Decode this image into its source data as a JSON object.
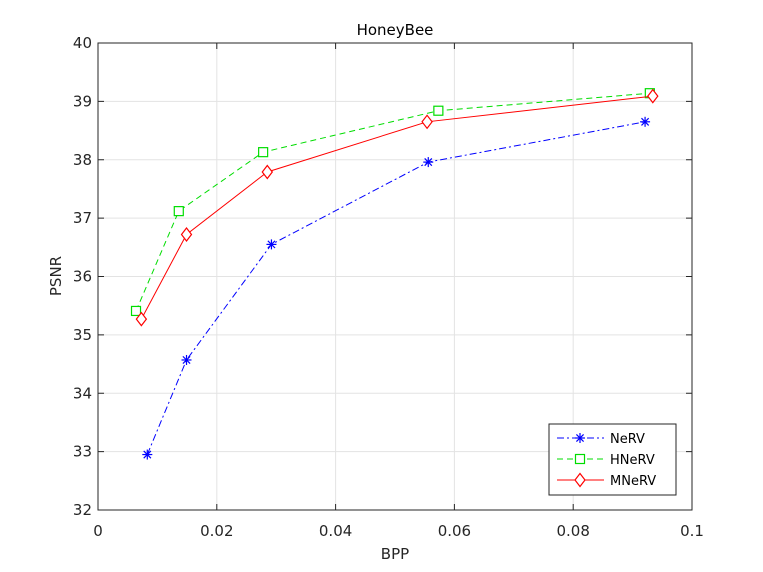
{
  "chart_data": {
    "type": "line",
    "title": "HoneyBee",
    "xlabel": "BPP",
    "ylabel": "PSNR",
    "xlim": [
      0,
      0.1
    ],
    "ylim": [
      32,
      40
    ],
    "xticks": [
      0,
      0.02,
      0.04,
      0.06,
      0.08,
      0.1
    ],
    "xtick_labels": [
      "0",
      "0.02",
      "0.04",
      "0.06",
      "0.08",
      "0.1"
    ],
    "yticks": [
      32,
      33,
      34,
      35,
      36,
      37,
      38,
      39,
      40
    ],
    "ytick_labels": [
      "32",
      "33",
      "34",
      "35",
      "36",
      "37",
      "38",
      "39",
      "40"
    ],
    "grid": true,
    "legend_position": "bottom-right",
    "series": [
      {
        "name": "NeRV",
        "color": "#0000ff",
        "line_style": "dash-dot",
        "marker": "asterisk",
        "x": [
          0.0083,
          0.0149,
          0.0292,
          0.0556,
          0.0921
        ],
        "y": [
          32.95,
          34.57,
          36.55,
          37.96,
          38.65
        ]
      },
      {
        "name": "HNeRV",
        "color": "#00dd00",
        "line_style": "dashed",
        "marker": "square",
        "x": [
          0.0064,
          0.0136,
          0.0278,
          0.0573,
          0.0929
        ],
        "y": [
          35.41,
          37.12,
          38.13,
          38.84,
          39.14
        ]
      },
      {
        "name": "MNeRV",
        "color": "#ff0000",
        "line_style": "solid",
        "marker": "diamond",
        "x": [
          0.0073,
          0.0149,
          0.0285,
          0.0554,
          0.0934
        ],
        "y": [
          35.27,
          36.72,
          37.79,
          38.65,
          39.09
        ]
      }
    ]
  }
}
